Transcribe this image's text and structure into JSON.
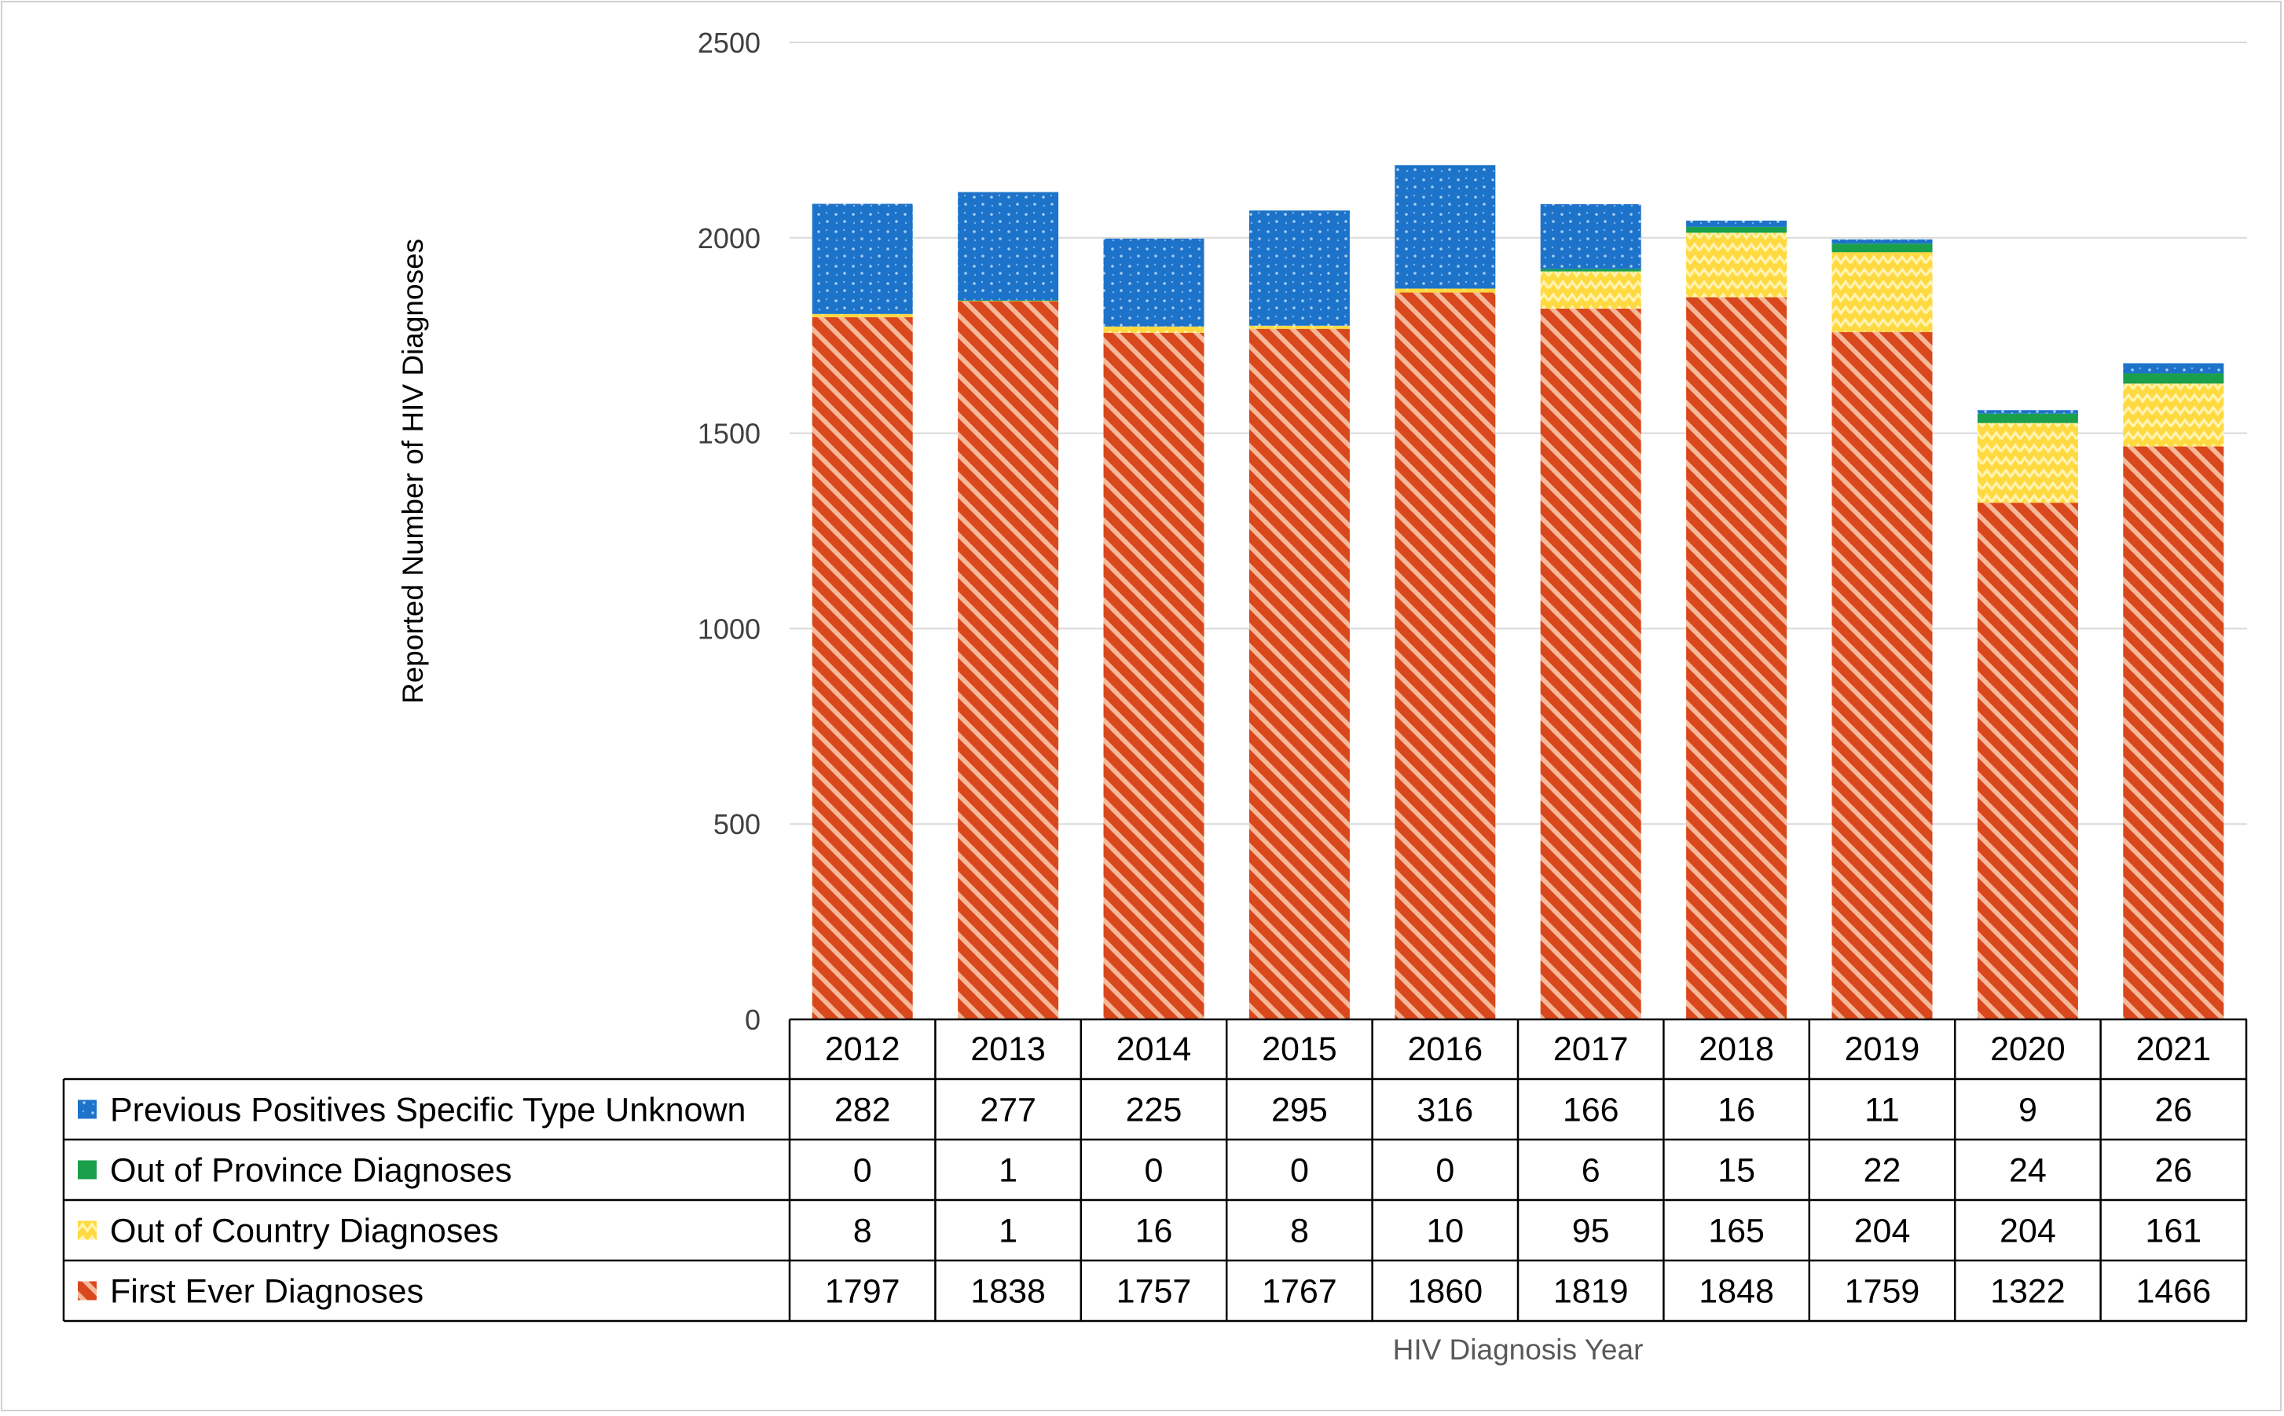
{
  "chart_data": {
    "type": "bar",
    "stacked": true,
    "title": "",
    "xlabel": "HIV Diagnosis Year",
    "ylabel": "Reported Number of HIV Diagnoses",
    "ylim": [
      0,
      2500
    ],
    "yticks": [
      0,
      500,
      1000,
      1500,
      2000,
      2500
    ],
    "grid": true,
    "legend": "data-table-left",
    "categories": [
      "2012",
      "2013",
      "2014",
      "2015",
      "2016",
      "2017",
      "2018",
      "2019",
      "2020",
      "2021"
    ],
    "series": [
      {
        "name": "First Ever Diagnoses",
        "values": [
          1797,
          1838,
          1757,
          1767,
          1860,
          1819,
          1848,
          1759,
          1322,
          1466
        ],
        "color": "#d9471c",
        "pattern": "hatch"
      },
      {
        "name": "Out of Country Diagnoses",
        "values": [
          8,
          1,
          16,
          8,
          10,
          95,
          165,
          204,
          204,
          161
        ],
        "color": "#ffd940",
        "pattern": "zigzag"
      },
      {
        "name": "Out of Province Diagnoses",
        "values": [
          0,
          1,
          0,
          0,
          0,
          6,
          15,
          22,
          24,
          26
        ],
        "color": "#1aa04b",
        "pattern": "solid"
      },
      {
        "name": "Previous Positives Specific Type Unknown",
        "values": [
          282,
          277,
          225,
          295,
          316,
          166,
          16,
          11,
          9,
          26
        ],
        "color": "#1d73c9",
        "pattern": "dots"
      }
    ],
    "table_order": [
      3,
      2,
      1,
      0
    ]
  }
}
